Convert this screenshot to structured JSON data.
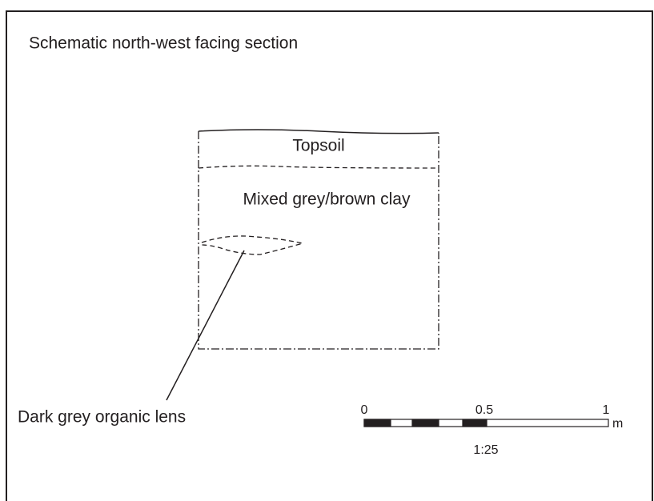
{
  "title": "Schematic north-west facing section",
  "layers": [
    "Topsoil",
    "Mixed grey/brown clay"
  ],
  "annotation": "Dark grey organic lens",
  "scale": {
    "ticks": [
      "0",
      "0.5",
      "1"
    ],
    "unit": "m",
    "ratio": "1:25"
  }
}
